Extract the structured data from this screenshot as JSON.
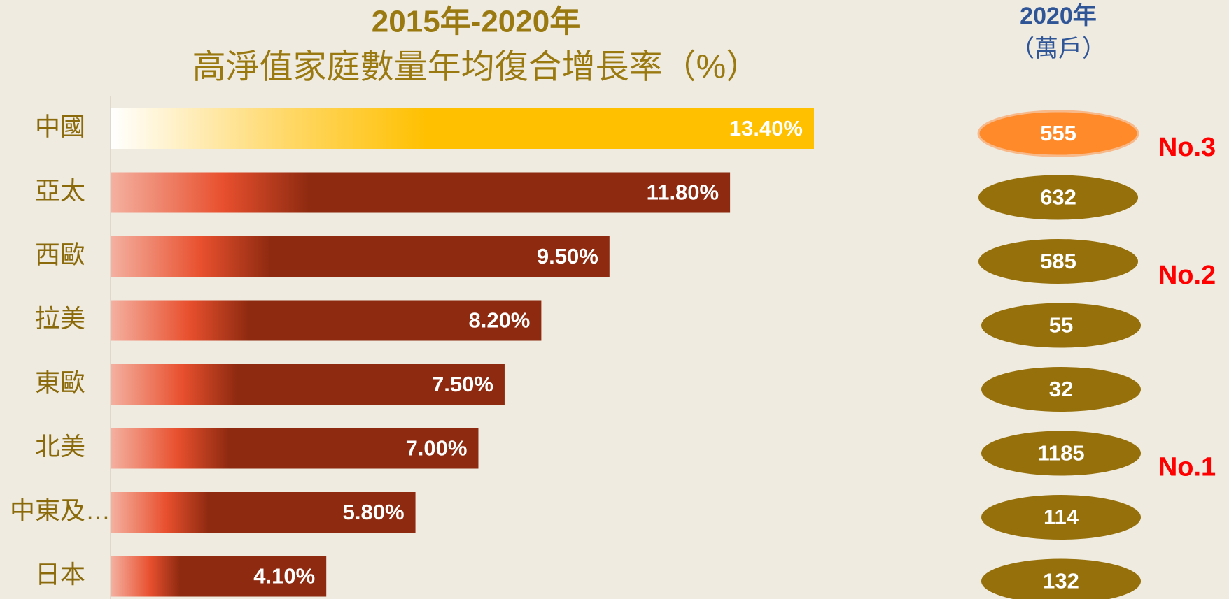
{
  "chart_data": {
    "type": "bar",
    "orientation": "horizontal",
    "title": "2015年-2020年",
    "subtitle": "高淨值家庭數量年均復合增長率（%）",
    "categories": [
      "中國",
      "亞太",
      "西歐",
      "拉美",
      "東歐",
      "北美",
      "中東及…",
      "日本"
    ],
    "values": [
      13.4,
      11.8,
      9.5,
      8.2,
      7.5,
      7.0,
      5.8,
      4.1
    ],
    "value_labels": [
      "13.40%",
      "11.80%",
      "9.50%",
      "8.20%",
      "7.50%",
      "7.00%",
      "5.80%",
      "4.10%"
    ],
    "color": "#8e2a10",
    "highlight_color": "#ffc000",
    "households": {
      "title": "2020年",
      "unit": "（萬戶）",
      "values": [
        555,
        632,
        585,
        55,
        32,
        1185,
        114,
        132
      ],
      "color": "#96700a",
      "highlight_color": "#ff8a2a"
    },
    "rank_labels": [
      "No.3",
      null,
      "No.2",
      null,
      null,
      "No.1",
      null,
      null
    ]
  }
}
